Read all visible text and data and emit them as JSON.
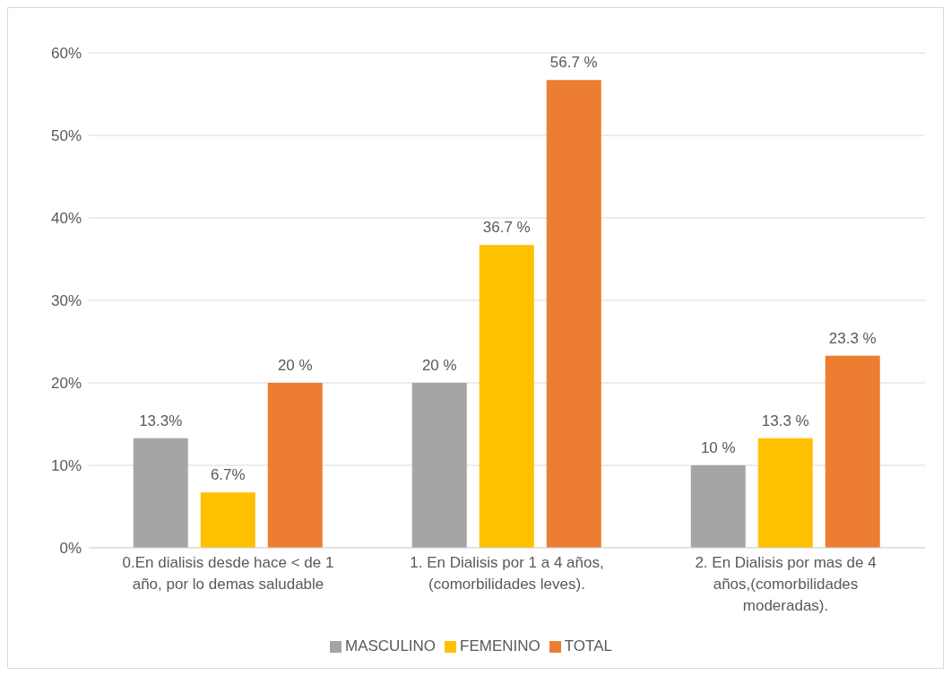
{
  "chart_data": {
    "type": "bar",
    "categories": [
      "0.En dialisis desde hace < de 1 año, por lo demas saludable",
      "1. En Dialisis por 1 a 4 años, (comorbilidades leves).",
      "2. En Dialisis por mas de 4 años,(comorbilidades moderadas)."
    ],
    "series": [
      {
        "name": "MASCULINO",
        "color": "#a5a5a5",
        "values": [
          13.3,
          20,
          10
        ],
        "value_labels": [
          "13.3%",
          "20 %",
          "10 %"
        ]
      },
      {
        "name": "FEMENINO",
        "color": "#ffc000",
        "values": [
          6.7,
          36.7,
          13.3
        ],
        "value_labels": [
          "6.7%",
          "36.7 %",
          "13.3 %"
        ]
      },
      {
        "name": "TOTAL",
        "color": "#ed7d31",
        "values": [
          20,
          56.7,
          23.3
        ],
        "value_labels": [
          "20 %",
          "56.7 %",
          "23.3 %"
        ]
      }
    ],
    "ylim": [
      0,
      60
    ],
    "yticks": [
      {
        "value": 0,
        "label": "0%"
      },
      {
        "value": 10,
        "label": "10%"
      },
      {
        "value": 20,
        "label": "20%"
      },
      {
        "value": 30,
        "label": "30%"
      },
      {
        "value": 40,
        "label": "40%"
      },
      {
        "value": 50,
        "label": "50%"
      },
      {
        "value": 60,
        "label": "60%"
      }
    ],
    "grid": "y",
    "legend": "bottom"
  }
}
